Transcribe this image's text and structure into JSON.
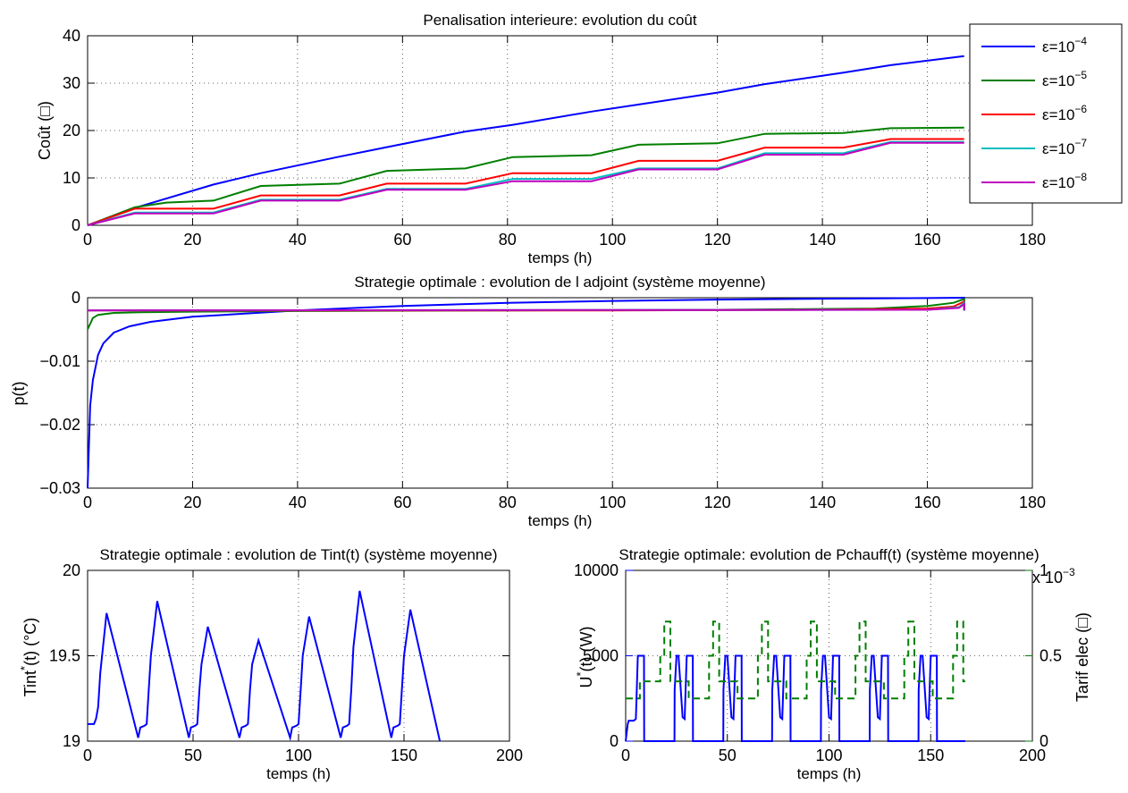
{
  "chart_data": [
    {
      "type": "line",
      "title": "Penalisation interieure: evolution du coût",
      "xlabel": "temps (h)",
      "ylabel": "Coût (□)",
      "xlim": [
        0,
        180
      ],
      "ylim": [
        0,
        40
      ],
      "xticks": [
        "0",
        "20",
        "40",
        "60",
        "80",
        "100",
        "120",
        "140",
        "160",
        "180"
      ],
      "yticks": [
        "0",
        "10",
        "20",
        "30",
        "40"
      ],
      "grid": true,
      "legend_position": "top-right",
      "series": [
        {
          "name": "ε=10",
          "exp": "−4",
          "color": "#0000ff",
          "x": [
            0,
            10,
            24,
            33,
            48,
            57,
            72,
            81,
            96,
            105,
            120,
            129,
            144,
            153,
            167
          ],
          "y": [
            0,
            4,
            8.6,
            11,
            14.5,
            16.5,
            19.8,
            21.2,
            24,
            25.5,
            28,
            29.8,
            32.2,
            33.8,
            35.7
          ]
        },
        {
          "name": "ε=10",
          "exp": "−5",
          "color": "#007f00",
          "x": [
            0,
            9,
            15,
            24,
            33,
            48,
            57,
            72,
            81,
            96,
            105,
            120,
            129,
            144,
            153,
            167
          ],
          "y": [
            0,
            3.8,
            4.8,
            5.2,
            8.3,
            8.8,
            11.5,
            12,
            14.4,
            14.8,
            17,
            17.3,
            19.3,
            19.5,
            20.5,
            20.6
          ]
        },
        {
          "name": "ε=10",
          "exp": "−6",
          "color": "#ff0000",
          "x": [
            0,
            9,
            24,
            33,
            48,
            57,
            72,
            81,
            96,
            105,
            120,
            129,
            144,
            153,
            167
          ],
          "y": [
            0,
            3.5,
            3.5,
            6.3,
            6.3,
            8.8,
            8.8,
            11,
            11,
            13.6,
            13.6,
            16.4,
            16.4,
            18.2,
            18.2
          ]
        },
        {
          "name": "ε=10",
          "exp": "−7",
          "color": "#00bfbf",
          "x": [
            0,
            9,
            24,
            33,
            48,
            57,
            72,
            81,
            96,
            105,
            120,
            129,
            144,
            153,
            167
          ],
          "y": [
            0,
            2.7,
            2.7,
            5.4,
            5.4,
            7.7,
            7.7,
            9.8,
            9.8,
            12,
            12,
            15.2,
            15.2,
            17.6,
            17.6
          ]
        },
        {
          "name": "ε=10",
          "exp": "−8",
          "color": "#bf00bf",
          "x": [
            0,
            9,
            24,
            33,
            48,
            57,
            72,
            81,
            96,
            105,
            120,
            129,
            144,
            153,
            167
          ],
          "y": [
            0,
            2.5,
            2.5,
            5.2,
            5.2,
            7.5,
            7.5,
            9.3,
            9.3,
            11.8,
            11.8,
            14.9,
            14.9,
            17.4,
            17.4
          ]
        }
      ]
    },
    {
      "type": "line",
      "title": "Strategie optimale : evolution de l adjoint (système moyenne)",
      "xlabel": "temps (h)",
      "ylabel": "p(t)",
      "xlim": [
        0,
        180
      ],
      "ylim": [
        -0.03,
        0
      ],
      "xticks": [
        "0",
        "20",
        "40",
        "60",
        "80",
        "100",
        "120",
        "140",
        "160",
        "180"
      ],
      "yticks": [
        "−0.03",
        "−0.02",
        "−0.01",
        "0"
      ],
      "grid": true,
      "series": [
        {
          "color": "#0000ff",
          "x": [
            0,
            0.5,
            1,
            2,
            3,
            5,
            8,
            12,
            20,
            30,
            40,
            60,
            80,
            100,
            120,
            140,
            160,
            167,
            167
          ],
          "y": [
            -0.03,
            -0.017,
            -0.013,
            -0.009,
            -0.0072,
            -0.0055,
            -0.0045,
            -0.0038,
            -0.003,
            -0.0025,
            -0.002,
            -0.0013,
            -0.0008,
            -0.0005,
            -0.0003,
            -0.00015,
            -5e-05,
            0,
            -0.002
          ]
        },
        {
          "color": "#007f00",
          "x": [
            0,
            1,
            2,
            5,
            10,
            20,
            40,
            80,
            120,
            150,
            160,
            165,
            167,
            167
          ],
          "y": [
            -0.005,
            -0.0032,
            -0.0027,
            -0.0024,
            -0.0023,
            -0.0022,
            -0.0021,
            -0.002,
            -0.0019,
            -0.0017,
            -0.0013,
            -0.0008,
            -0.0002,
            -0.002
          ]
        },
        {
          "color": "#ff0000",
          "x": [
            0,
            100,
            140,
            160,
            165,
            167,
            167
          ],
          "y": [
            -0.002,
            -0.002,
            -0.0019,
            -0.0017,
            -0.0014,
            -0.0006,
            -0.002
          ]
        },
        {
          "color": "#00bfbf",
          "x": [
            0,
            160,
            166,
            167,
            167
          ],
          "y": [
            -0.002,
            -0.0019,
            -0.0015,
            -0.0008,
            -0.002
          ]
        },
        {
          "color": "#bf00bf",
          "x": [
            0,
            160,
            166,
            167,
            167
          ],
          "y": [
            -0.002,
            -0.0019,
            -0.0016,
            -0.001,
            -0.002
          ]
        }
      ]
    },
    {
      "type": "line",
      "title": "Strategie optimale : evolution de Tint(t) (système moyenne)",
      "xlabel": "temps (h)",
      "ylabel": "Tint",
      "ylabel_sup": "*",
      "ylabel_after": "(t) (°C)",
      "xlim": [
        0,
        200
      ],
      "ylim": [
        19,
        20
      ],
      "xticks": [
        "0",
        "50",
        "100",
        "150",
        "200"
      ],
      "yticks": [
        "19",
        "19.5",
        "20"
      ],
      "grid": true,
      "series": [
        {
          "color": "#0000ff",
          "x": [
            0,
            3,
            4,
            5,
            6,
            9,
            24,
            25,
            27,
            28,
            29,
            30,
            33,
            48,
            49,
            51,
            52,
            53,
            54,
            57,
            72,
            73,
            75,
            76,
            77,
            78,
            81,
            96,
            97,
            99,
            100,
            101,
            102,
            105,
            120,
            121,
            123,
            124,
            125,
            126,
            129,
            144,
            145,
            147,
            148,
            149,
            150,
            153,
            167
          ],
          "y": [
            19.1,
            19.1,
            19.13,
            19.2,
            19.4,
            19.75,
            19.02,
            19.08,
            19.09,
            19.1,
            19.3,
            19.5,
            19.82,
            19.02,
            19.08,
            19.09,
            19.1,
            19.3,
            19.45,
            19.67,
            19.02,
            19.08,
            19.09,
            19.1,
            19.3,
            19.45,
            19.59,
            19.02,
            19.08,
            19.09,
            19.1,
            19.3,
            19.5,
            19.73,
            19.02,
            19.08,
            19.09,
            19.1,
            19.3,
            19.55,
            19.88,
            19.02,
            19.08,
            19.09,
            19.1,
            19.3,
            19.5,
            19.77,
            19.0
          ]
        }
      ]
    },
    {
      "type": "line",
      "title": "Strategie optimale: evolution de Pchauff(t) (système moyenne)",
      "xlabel": "temps (h)",
      "ylabel_left": "U",
      "ylabel_left_sup": "*",
      "ylabel_left_after": "(t) (W)",
      "ylabel_right": "Tarif elec (□)",
      "exponent_label": "x 10",
      "exponent_value": "−3",
      "xlim": [
        0,
        200
      ],
      "ylim_left": [
        0,
        10000
      ],
      "ylim_right": [
        0,
        0.001
      ],
      "xticks": [
        "0",
        "50",
        "100",
        "150",
        "200"
      ],
      "yticks_left": [
        "0",
        "5000",
        "10000"
      ],
      "yticks_right": [
        "0",
        "0.5",
        "1"
      ],
      "grid": true,
      "series": [
        {
          "name": "U*(t)",
          "color": "#0000ff",
          "axis": "left",
          "x": [
            0,
            1,
            1.5,
            4,
            5,
            6,
            9,
            9.1,
            24,
            24.1,
            25,
            26,
            28,
            29,
            30,
            33,
            33.1,
            48,
            48.1,
            49,
            50,
            52,
            53,
            54,
            57,
            57.1,
            72,
            72.1,
            73,
            74,
            76,
            77,
            78,
            81,
            81.1,
            96,
            96.1,
            97,
            98,
            100,
            101,
            102,
            105,
            105.1,
            120,
            120.1,
            121,
            122,
            124,
            125,
            126,
            129,
            129.1,
            144,
            144.1,
            145,
            146,
            148,
            149,
            150,
            153,
            153.1,
            167
          ],
          "y": [
            0,
            1000,
            1200,
            1200,
            1300,
            5000,
            5000,
            0,
            0,
            3000,
            5000,
            5000,
            1400,
            1300,
            5000,
            5000,
            0,
            0,
            3000,
            5000,
            5000,
            1400,
            1300,
            5000,
            5000,
            0,
            0,
            3000,
            5000,
            5000,
            1400,
            1300,
            5000,
            5000,
            0,
            0,
            3000,
            5000,
            5000,
            1400,
            1300,
            5000,
            5000,
            0,
            0,
            3000,
            5000,
            5000,
            1400,
            1300,
            5000,
            5000,
            0,
            0,
            3000,
            5000,
            5000,
            1400,
            1300,
            5000,
            5000,
            0,
            0
          ]
        },
        {
          "name": "Tarif elec",
          "color": "#007f00",
          "axis": "right",
          "dashed": true,
          "x": [
            0,
            7,
            7,
            17,
            17,
            19,
            19,
            22,
            22,
            31,
            31,
            41,
            41,
            43,
            43,
            46,
            46,
            55,
            55,
            65,
            65,
            67,
            67,
            70,
            70,
            79,
            79,
            89,
            89,
            91,
            91,
            94,
            94,
            103,
            103,
            113,
            113,
            115,
            115,
            118,
            118,
            127,
            127,
            137,
            137,
            139,
            139,
            142,
            142,
            151,
            151,
            161,
            161,
            163,
            163,
            166,
            166,
            167
          ],
          "y": [
            0.00025,
            0.00025,
            0.00035,
            0.00035,
            0.0005,
            0.0005,
            0.0007,
            0.0007,
            0.00035,
            0.00035,
            0.00025,
            0.00025,
            0.0005,
            0.0005,
            0.0007,
            0.0007,
            0.00035,
            0.00035,
            0.00025,
            0.00025,
            0.0005,
            0.0005,
            0.0007,
            0.0007,
            0.00035,
            0.00035,
            0.00025,
            0.00025,
            0.0005,
            0.0005,
            0.0007,
            0.0007,
            0.00035,
            0.00035,
            0.00025,
            0.00025,
            0.0005,
            0.0005,
            0.0007,
            0.0007,
            0.00035,
            0.00035,
            0.00025,
            0.00025,
            0.0005,
            0.0005,
            0.0007,
            0.0007,
            0.00035,
            0.00035,
            0.00025,
            0.00025,
            0.0005,
            0.0005,
            0.0007,
            0.0007,
            0.00035,
            0.00035
          ]
        }
      ]
    }
  ]
}
